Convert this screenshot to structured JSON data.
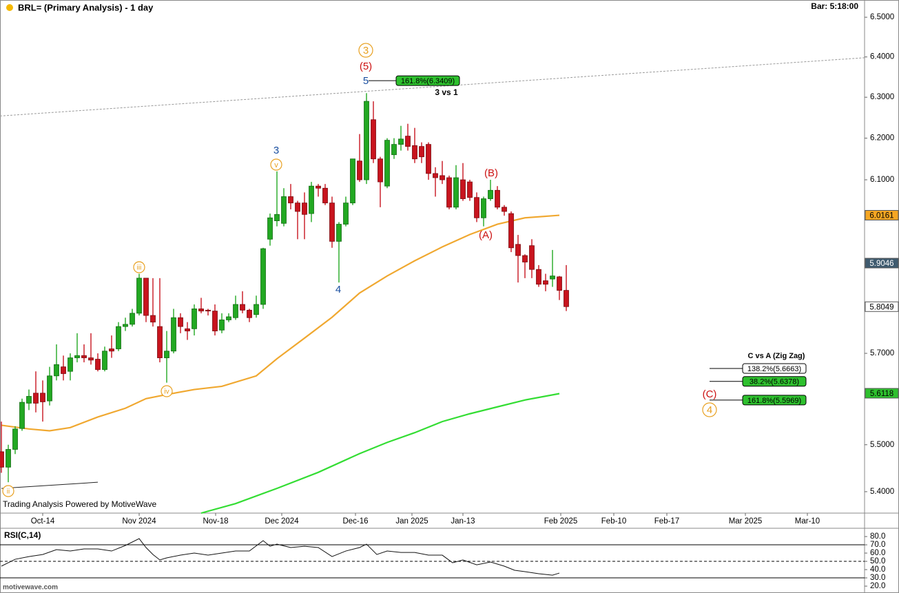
{
  "chart_data": [
    {
      "type": "candlestick",
      "title": "BRL= (Primary Analysis) - 1 day",
      "bar_time": "Bar: 5:18:00",
      "watermark": "Trading Analysis Powered by MotiveWave",
      "log_scale": true,
      "xlim": [
        -0.2,
        125.3
      ],
      "ylim": [
        5.355,
        6.544
      ],
      "xticks": [
        {
          "value": 6,
          "label": "Oct-14"
        },
        {
          "value": 20,
          "label": "Nov 2024"
        },
        {
          "value": 31.1,
          "label": "Nov-18"
        },
        {
          "value": 40.7,
          "label": "Dec 2024"
        },
        {
          "value": 51.4,
          "label": "Dec-16"
        },
        {
          "value": 59.6,
          "label": "Jan 2025"
        },
        {
          "value": 67,
          "label": "Jan-13"
        },
        {
          "value": 81.2,
          "label": "Feb 2025"
        },
        {
          "value": 88.9,
          "label": "Feb-10"
        },
        {
          "value": 96.6,
          "label": "Feb-17"
        },
        {
          "value": 108,
          "label": "Mar 2025"
        },
        {
          "value": 117,
          "label": "Mar-10"
        }
      ],
      "yticks": [
        {
          "value": 6.5,
          "label": "6.5000"
        },
        {
          "value": 6.4,
          "label": "6.4000"
        },
        {
          "value": 6.3,
          "label": "6.3000"
        },
        {
          "value": 6.2,
          "label": "6.2000"
        },
        {
          "value": 6.1,
          "label": "6.1000"
        },
        {
          "value": 5.7,
          "label": "5.7000"
        },
        {
          "value": 5.5,
          "label": "5.5000"
        },
        {
          "value": 5.4,
          "label": "5.4000"
        }
      ],
      "up_color": "#22a822",
      "down_color": "#c8141e",
      "open": [
        5.485,
        5.452,
        5.49,
        5.535,
        5.59,
        5.612,
        5.612,
        5.595,
        5.65,
        5.67,
        5.66,
        5.69,
        5.695,
        5.69,
        5.687,
        5.664,
        5.71,
        5.71,
        5.76,
        5.765,
        5.79,
        5.87,
        5.785,
        5.76,
        5.69,
        5.705,
        5.78,
        5.755,
        5.755,
        5.8,
        5.797,
        5.795,
        5.752,
        5.775,
        5.78,
        5.81,
        5.797,
        5.787,
        5.81,
        5.96,
        6.003,
        5.997,
        6.06,
        6.045,
        6.045,
        6.02,
        6.085,
        6.08,
        6.045,
        5.955,
        5.995,
        6.045,
        6.145,
        6.1,
        6.245,
        6.15,
        6.085,
        6.16,
        6.185,
        6.205,
        6.182,
        6.18,
        6.185,
        6.115,
        6.11,
        6.105,
        6.035,
        6.1,
        6.095,
        6.058,
        6.01,
        6.055,
        6.075,
        6.035,
        6.02,
        5.948,
        5.922,
        5.945,
        5.89,
        5.864,
        5.868,
        5.873,
        5.842
      ],
      "high": [
        5.55,
        5.5,
        5.54,
        5.6,
        5.62,
        5.66,
        5.64,
        5.67,
        5.72,
        5.695,
        5.7,
        5.745,
        5.72,
        5.745,
        5.7,
        5.715,
        5.74,
        5.77,
        5.78,
        5.8,
        5.88,
        5.87,
        5.87,
        5.87,
        5.75,
        5.8,
        5.79,
        5.77,
        5.81,
        5.825,
        5.8,
        5.81,
        5.79,
        5.79,
        5.83,
        5.84,
        5.8,
        5.83,
        5.94,
        6.02,
        6.12,
        6.08,
        6.09,
        6.05,
        6.07,
        6.095,
        6.09,
        6.09,
        6.06,
        6.0,
        6.06,
        6.15,
        6.21,
        6.31,
        6.29,
        6.155,
        6.2,
        6.2,
        6.23,
        6.235,
        6.225,
        6.19,
        6.19,
        6.13,
        6.145,
        6.11,
        6.135,
        6.14,
        6.1,
        6.07,
        6.06,
        6.1,
        6.085,
        6.04,
        6.025,
        5.97,
        5.925,
        5.96,
        5.9,
        5.88,
        5.935,
        5.875,
        5.9
      ],
      "low": [
        5.44,
        5.42,
        5.48,
        5.53,
        5.575,
        5.57,
        5.55,
        5.585,
        5.64,
        5.64,
        5.64,
        5.68,
        5.68,
        5.675,
        5.66,
        5.66,
        5.69,
        5.705,
        5.75,
        5.76,
        5.785,
        5.77,
        5.76,
        5.68,
        5.635,
        5.7,
        5.745,
        5.73,
        5.74,
        5.79,
        5.785,
        5.74,
        5.745,
        5.77,
        5.775,
        5.79,
        5.77,
        5.78,
        5.8,
        5.945,
        5.99,
        5.99,
        6.03,
        5.96,
        5.96,
        6.0,
        6.06,
        6.04,
        5.94,
        5.86,
        5.99,
        6.04,
        6.095,
        6.09,
        6.14,
        6.035,
        6.08,
        6.15,
        6.17,
        6.17,
        6.14,
        6.14,
        6.1,
        6.06,
        6.09,
        6.03,
        6.03,
        6.05,
        6.05,
        6.0,
        5.99,
        6.05,
        6.03,
        6.015,
        5.93,
        5.86,
        5.87,
        5.87,
        5.85,
        5.84,
        5.85,
        5.82,
        5.795
      ],
      "close": [
        5.452,
        5.49,
        5.534,
        5.592,
        5.605,
        5.59,
        5.593,
        5.65,
        5.675,
        5.655,
        5.69,
        5.695,
        5.69,
        5.685,
        5.664,
        5.705,
        5.705,
        5.76,
        5.765,
        5.79,
        5.87,
        5.785,
        5.77,
        5.69,
        5.705,
        5.78,
        5.76,
        5.75,
        5.8,
        5.795,
        5.795,
        5.75,
        5.775,
        5.782,
        5.81,
        5.797,
        5.78,
        5.81,
        5.938,
        6.01,
        6.018,
        6.06,
        6.045,
        6.025,
        6.018,
        6.085,
        6.08,
        6.045,
        5.955,
        5.995,
        6.045,
        6.15,
        6.1,
        6.29,
        6.15,
        6.095,
        6.195,
        6.185,
        6.198,
        6.18,
        6.15,
        6.155,
        6.115,
        6.105,
        6.1,
        6.035,
        6.105,
        6.055,
        6.058,
        6.01,
        6.055,
        6.075,
        6.035,
        6.025,
        5.94,
        5.922,
        5.907,
        5.89,
        5.856,
        5.856,
        5.875,
        5.842,
        5.805
      ],
      "lines": [
        {
          "color": "#f0a830",
          "x": [
            0,
            4,
            7,
            10,
            14,
            18,
            21,
            24,
            28,
            32,
            37,
            40,
            44,
            48,
            52,
            56,
            60,
            64,
            68,
            72,
            76,
            81
          ],
          "values": [
            5.542,
            5.534,
            5.53,
            5.537,
            5.56,
            5.579,
            5.6,
            5.609,
            5.62,
            5.627,
            5.65,
            5.688,
            5.734,
            5.781,
            5.836,
            5.875,
            5.91,
            5.942,
            5.971,
            5.995,
            6.01,
            6.016
          ]
        },
        {
          "color": "#33dd33",
          "x": [
            29,
            34,
            40,
            46,
            52,
            56,
            60,
            64,
            68,
            72,
            76,
            81
          ],
          "values": [
            5.355,
            5.375,
            5.407,
            5.441,
            5.481,
            5.505,
            5.526,
            5.55,
            5.567,
            5.582,
            5.597,
            5.611
          ]
        }
      ],
      "trendlines": [
        {
          "x": [
            -0.2,
            125.3
          ],
          "values": [
            6.254,
            6.398
          ],
          "dashed": true,
          "color": "#999999"
        },
        {
          "x": [
            0,
            14
          ],
          "values": [
            5.407,
            5.42
          ],
          "dashed": false,
          "color": "#222222"
        }
      ],
      "fib_levels": [
        {
          "value": 6.3409,
          "label": "161.8%(6.3409)"
        },
        {
          "value": 5.6663,
          "label": "138.2%(5.6663)"
        },
        {
          "value": 5.6378,
          "label": "38.2%(5.6378)"
        },
        {
          "value": 5.5969,
          "label": "161.8%(5.5969)"
        }
      ],
      "wave_labels": [
        "3",
        "(5)",
        "5",
        "3 vs 1",
        "3",
        "v",
        "iii",
        "iv",
        "ii",
        "4",
        "(B)",
        "(A)",
        "(C)",
        "4",
        "C vs A (Zig Zag)"
      ],
      "price_flags": [
        6.0161,
        5.9046,
        5.8049,
        5.6118
      ],
      "price_flag_colors": [
        "#f5a623",
        "#3f5b6f",
        "#ffffff",
        "#2ec02e"
      ]
    },
    {
      "type": "line",
      "title": "RSI(C,14)",
      "xlim": [
        -0.2,
        125.3
      ],
      "ylim": [
        14.2,
        89.2
      ],
      "yticks": [
        {
          "value": 80,
          "label": "80.0"
        },
        {
          "value": 70,
          "label": "70.0"
        },
        {
          "value": 60,
          "label": "60.0"
        },
        {
          "value": 50,
          "label": "50.0"
        },
        {
          "value": 40,
          "label": "40.0"
        },
        {
          "value": 30,
          "label": "30.0"
        },
        {
          "value": 20,
          "label": "20.0"
        }
      ],
      "levels": [
        {
          "value": 70,
          "dashed": false
        },
        {
          "value": 50,
          "dashed": true
        },
        {
          "value": 30,
          "dashed": false
        }
      ],
      "color": "#111111",
      "x": [
        0,
        2,
        4,
        6,
        8,
        10,
        12,
        14,
        16,
        18,
        20,
        21,
        22,
        23,
        24,
        26,
        28,
        30,
        32,
        34,
        36,
        38,
        39,
        40,
        42,
        44,
        46,
        48,
        50,
        52,
        53,
        54.5,
        56,
        58,
        60,
        62,
        64,
        65.5,
        67,
        69,
        71,
        73,
        74.5,
        76,
        78,
        80,
        81
      ],
      "values": [
        44.2,
        52.5,
        55.8,
        58.3,
        64.2,
        62.5,
        65,
        65,
        62.5,
        69.2,
        77.5,
        66.7,
        58.3,
        51.7,
        54.2,
        57.5,
        60,
        57.5,
        60,
        62.5,
        62.5,
        75,
        68.3,
        70.8,
        66.7,
        68.3,
        66.7,
        55.8,
        62.5,
        66.7,
        70.8,
        58.3,
        62.5,
        60.8,
        60.8,
        57.5,
        57.5,
        48.3,
        51.7,
        45.8,
        49.2,
        44.2,
        39.2,
        37.5,
        35,
        33.3,
        35.8
      ]
    }
  ],
  "footer": "motivewave.com"
}
